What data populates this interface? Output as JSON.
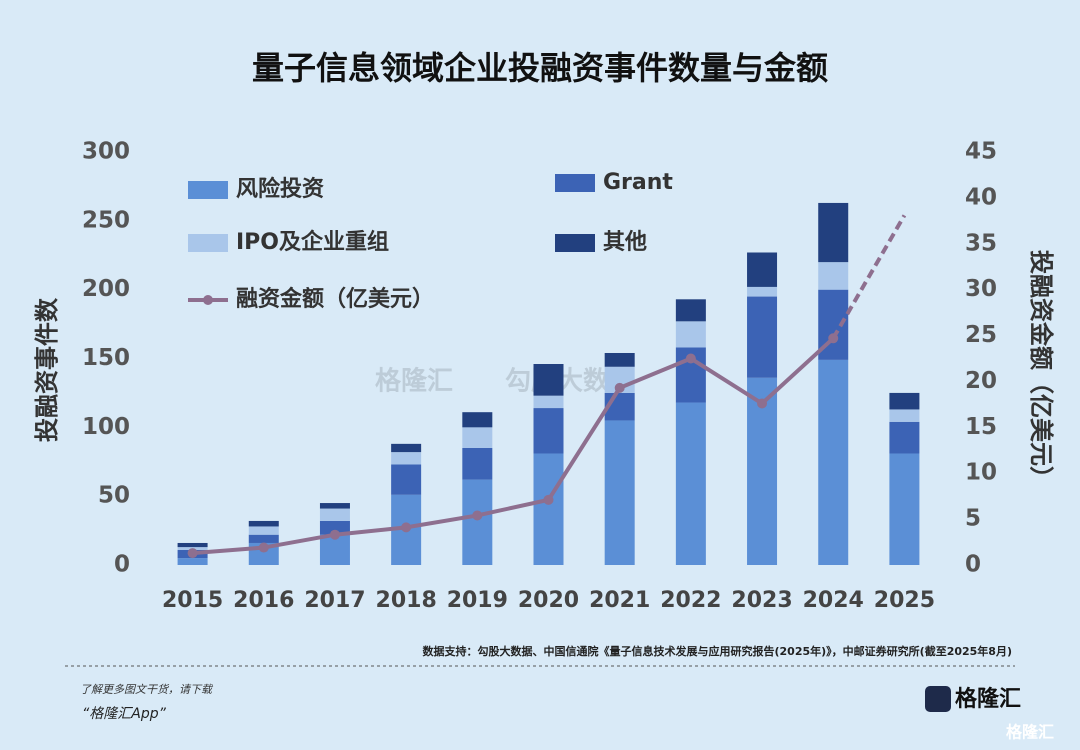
{
  "chart_data": {
    "type": "stacked_bar_line",
    "title": "量子信息领域企业投融资事件数量与金额",
    "ylabel": "投融资事件数",
    "y2label": "投融资金额（亿美元）",
    "categories": [
      "2015",
      "2016",
      "2017",
      "2018",
      "2019",
      "2020",
      "2021",
      "2022",
      "2023",
      "2024",
      "2025"
    ],
    "series": [
      {
        "name": "风险投资",
        "color": "#5b8fd6",
        "values": [
          5,
          16,
          22,
          51,
          62,
          81,
          105,
          118,
          136,
          149,
          81
        ]
      },
      {
        "name": "Grant",
        "color": "#3c63b5",
        "values": [
          6,
          6,
          10,
          22,
          23,
          33,
          20,
          40,
          59,
          51,
          23
        ]
      },
      {
        "name": "IPO及企业重组",
        "color": "#a9c6ea",
        "values": [
          2,
          6,
          9,
          9,
          15,
          9,
          19,
          19,
          7,
          20,
          9
        ]
      },
      {
        "name": "其他",
        "color": "#22407f",
        "values": [
          3,
          4,
          4,
          6,
          11,
          23,
          10,
          16,
          25,
          43,
          12
        ]
      }
    ],
    "line": {
      "name": "融资金额（亿美元）",
      "color": "#8e6f8f",
      "axis": "y2",
      "dashed_last_segment": true,
      "values": [
        1.3,
        1.9,
        3.3,
        4.1,
        5.4,
        7.1,
        19.3,
        22.5,
        17.6,
        24.7,
        38.1
      ]
    },
    "ylim": [
      0,
      300
    ],
    "yticks": [
      0,
      50,
      100,
      150,
      200,
      250,
      300
    ],
    "y2lim": [
      0,
      45
    ],
    "y2ticks": [
      0,
      5,
      10,
      15,
      20,
      25,
      30,
      35,
      40,
      45
    ],
    "source": "数据支持：勾股大数据、中国信通院《量子信息技术发展与应用研究报告(2025年)》，中邮证券研究所(截至2025年8月)"
  },
  "footer": {
    "note": "了解更多图文干货，请下载",
    "app": "“格隆汇App”",
    "logo": "格隆汇",
    "corner": "格隆汇"
  },
  "watermark": {
    "brand": "格隆汇",
    "data": "勾股大数据"
  }
}
